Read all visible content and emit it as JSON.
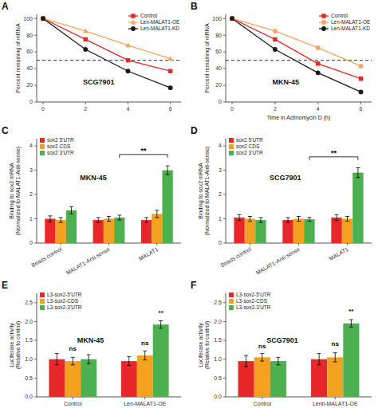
{
  "chart_data": [
    {
      "type": "line",
      "panel_label": "A",
      "title": "SCG7901",
      "ylabel": "Percent remaining of mRNA",
      "x": [
        0,
        2,
        4,
        6
      ],
      "xlim": [
        -0.3,
        6.5
      ],
      "ylim": [
        0,
        105
      ],
      "xticks": [
        0,
        2,
        4,
        6
      ],
      "yticks": [
        0,
        20,
        40,
        60,
        80,
        100
      ],
      "hline": 50,
      "legend": "upper right",
      "series": [
        {
          "name": "Control",
          "color": "#e8272a",
          "marker": "square",
          "values": [
            100,
            75,
            50,
            37
          ]
        },
        {
          "name": "Len-MALAT1-OE",
          "color": "#f4a660",
          "marker": "triangle",
          "values": [
            100,
            85,
            68,
            52
          ]
        },
        {
          "name": "Len-MALAT1-KD",
          "color": "#1a1a1a",
          "marker": "circle",
          "values": [
            100,
            63,
            37,
            17
          ]
        }
      ]
    },
    {
      "type": "line",
      "panel_label": "B",
      "title": "MKN-45",
      "xlabel": "Time in Actinomycin D (h)",
      "ylabel": "Percent remaining of mRNA",
      "x": [
        0,
        2,
        4,
        6
      ],
      "xlim": [
        -0.3,
        6.5
      ],
      "ylim": [
        0,
        105
      ],
      "xticks": [
        0,
        2,
        4,
        6
      ],
      "yticks": [
        0,
        20,
        40,
        60,
        80,
        100
      ],
      "hline": 50,
      "legend": "upper right",
      "series": [
        {
          "name": "Control",
          "color": "#e8272a",
          "marker": "square",
          "values": [
            100,
            75,
            46,
            28
          ]
        },
        {
          "name": "Len-MALAT1-OE",
          "color": "#f4a660",
          "marker": "circle",
          "values": [
            100,
            85,
            65,
            43
          ]
        },
        {
          "name": "Len-MALAT1-KD",
          "color": "#1a1a1a",
          "marker": "circle",
          "values": [
            100,
            63,
            35,
            12
          ]
        }
      ]
    },
    {
      "type": "bar",
      "panel_label": "C",
      "title": "MKN-45",
      "ylabel": "Binding to sox2 mRNA\n(Normalized to MALAT1-Anti-sense)",
      "categories": [
        "Beads control",
        "MALAT1-Anti-sense",
        "MALAT1"
      ],
      "ylim": [
        0,
        4.3
      ],
      "yticks": [
        0,
        1,
        2,
        3,
        4
      ],
      "legend": "upper left",
      "series": [
        {
          "name": "sox2 5'UTR",
          "color": "#e8272a",
          "values": [
            1.0,
            0.95,
            0.95
          ],
          "errors": [
            0.12,
            0.1,
            0.1
          ]
        },
        {
          "name": "sox2 CDS",
          "color": "#f4a120",
          "values": [
            0.95,
            1.0,
            1.2
          ],
          "errors": [
            0.1,
            0.1,
            0.15
          ]
        },
        {
          "name": "sox2 3'UTR",
          "color": "#4caf50",
          "values": [
            1.35,
            1.05,
            3.0
          ],
          "errors": [
            0.15,
            0.1,
            0.18
          ]
        }
      ],
      "annotations": [
        {
          "text": "**",
          "y": 3.65,
          "from": "MALAT1-Anti-sense",
          "to": "MALAT1",
          "series": "sox2 3'UTR"
        }
      ]
    },
    {
      "type": "bar",
      "panel_label": "D",
      "title": "SCG7901",
      "ylabel": "Binding to sox2 mRNA\n(Normalized to MALAT1-Anti-sense)",
      "categories": [
        "Beads control",
        "MALAT1-Anti-sense",
        "MALAT1"
      ],
      "ylim": [
        0,
        4.3
      ],
      "yticks": [
        0,
        1,
        2,
        3,
        4
      ],
      "legend": "upper left",
      "series": [
        {
          "name": "sox2 5'UTR",
          "color": "#e8272a",
          "values": [
            1.05,
            0.95,
            1.05
          ],
          "errors": [
            0.12,
            0.1,
            0.12
          ]
        },
        {
          "name": "sox2 CDS",
          "color": "#f4a120",
          "values": [
            1.0,
            1.0,
            1.0
          ],
          "errors": [
            0.1,
            0.1,
            0.1
          ]
        },
        {
          "name": "sox2 3'UTR",
          "color": "#4caf50",
          "values": [
            0.95,
            0.98,
            2.9
          ],
          "errors": [
            0.1,
            0.08,
            0.2
          ]
        }
      ],
      "annotations": [
        {
          "text": "**",
          "y": 3.55,
          "from": "MALAT1-Anti-sense",
          "to": "MALAT1",
          "series": "sox2 3'UTR"
        }
      ]
    },
    {
      "type": "bar",
      "panel_label": "E",
      "title": "MKN-45",
      "ylabel": "Luciferase activity\n(Relative to control)",
      "categories": [
        "Control",
        "Len-MALAT1-OE"
      ],
      "ylim": [
        0,
        2.75
      ],
      "yticks": [
        {
          "value": 0,
          "label": "0.0"
        },
        0.5,
        {
          "value": 1,
          "label": "1.0"
        },
        1.5,
        {
          "value": 2,
          "label": "2.0"
        },
        2.5
      ],
      "legend": "upper left",
      "series": [
        {
          "name": "L3-sox2-5'UTR",
          "color": "#e8272a",
          "values": [
            1.0,
            0.95
          ],
          "errors": [
            0.15,
            0.12
          ]
        },
        {
          "name": "L3-sox2-CDS",
          "color": "#f4a120",
          "values": [
            0.95,
            1.1
          ],
          "errors": [
            0.1,
            0.12
          ]
        },
        {
          "name": "L3-sox2-3'UTR",
          "color": "#4caf50",
          "values": [
            1.0,
            1.92
          ],
          "errors": [
            0.12,
            0.1
          ]
        }
      ],
      "annotations": [
        {
          "text": "ns",
          "y": 1.22,
          "category": "Control",
          "series": "L3-sox2-CDS"
        },
        {
          "text": "ns",
          "y": 1.38,
          "category": "Len-MALAT1-OE",
          "series": "L3-sox2-CDS"
        },
        {
          "text": "**",
          "y": 2.18,
          "category": "Len-MALAT1-OE",
          "series": "L3-sox2-3'UTR"
        }
      ]
    },
    {
      "type": "bar",
      "panel_label": "F",
      "title": "SCG7901",
      "ylabel": "Luciferase activity\n(Relative to control)",
      "categories": [
        "Control",
        "Lenti-MALAT1-OE"
      ],
      "ylim": [
        0,
        2.75
      ],
      "yticks": [
        {
          "value": 0,
          "label": "0.0"
        },
        0.5,
        {
          "value": 1,
          "label": "1.0"
        },
        1.5,
        {
          "value": 2,
          "label": "2.0"
        },
        2.5
      ],
      "legend": "upper left",
      "series": [
        {
          "name": "L3-sox2-5'UTR",
          "color": "#e8272a",
          "values": [
            0.95,
            1.0
          ],
          "errors": [
            0.15,
            0.15
          ]
        },
        {
          "name": "L3-sox2-CDS",
          "color": "#f4a120",
          "values": [
            1.05,
            1.05
          ],
          "errors": [
            0.1,
            0.12
          ]
        },
        {
          "name": "L3-sox2-3'UTR",
          "color": "#4caf50",
          "values": [
            0.95,
            1.95
          ],
          "errors": [
            0.1,
            0.1
          ]
        }
      ],
      "annotations": [
        {
          "text": "ns",
          "y": 1.3,
          "category": "Control",
          "series": "L3-sox2-CDS"
        },
        {
          "text": "ns",
          "y": 1.35,
          "category": "Lenti-MALAT1-OE",
          "series": "L3-sox2-CDS"
        },
        {
          "text": "**",
          "y": 2.22,
          "category": "Lenti-MALAT1-OE",
          "series": "L3-sox2-3'UTR"
        }
      ]
    }
  ]
}
